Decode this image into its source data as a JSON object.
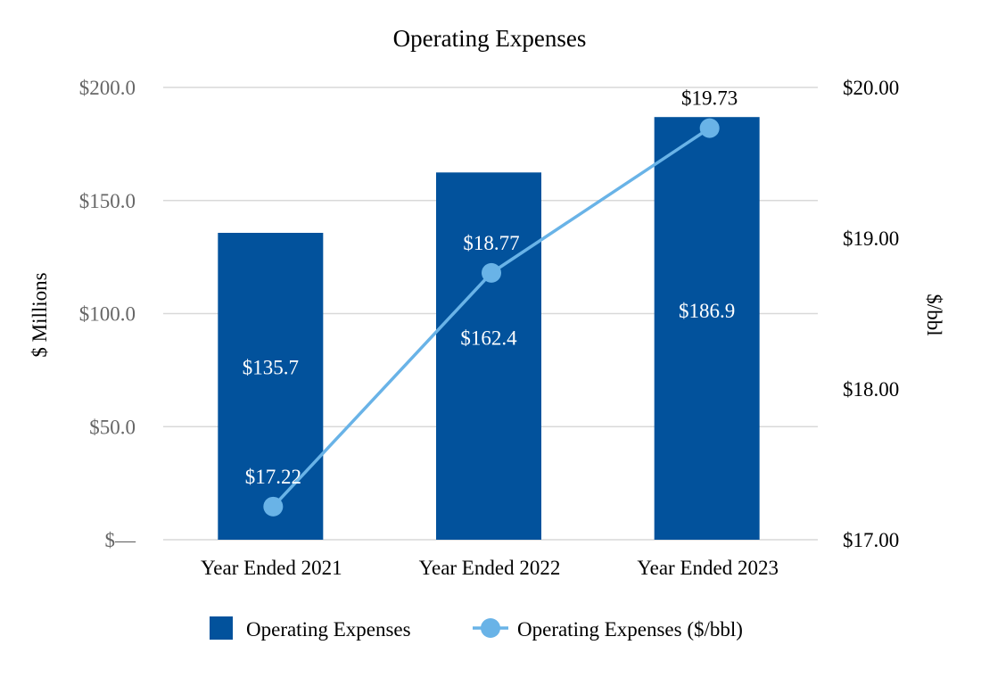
{
  "chart_data": {
    "type": "bar",
    "title": "Operating Expenses",
    "categories": [
      "Year Ended 2021",
      "Year Ended 2022",
      "Year Ended 2023"
    ],
    "series": [
      {
        "name": "Operating Expenses",
        "type": "bar",
        "axis": "left",
        "values": [
          135.7,
          162.4,
          186.9
        ],
        "labels": [
          "$135.7",
          "$162.4",
          "$186.9"
        ],
        "color": "#02529C"
      },
      {
        "name": "Operating Expenses ($/bbl)",
        "type": "line",
        "axis": "right",
        "values": [
          17.22,
          18.77,
          19.73
        ],
        "labels": [
          "$17.22",
          "$18.77",
          "$19.73"
        ],
        "color": "#69B3E7"
      }
    ],
    "ylabel": "$ Millions",
    "y2label": "$/bbl",
    "ylim": [
      0,
      200
    ],
    "y2lim": [
      17,
      20
    ],
    "yticks": [
      "$—",
      "$50.0",
      "$100.0",
      "$150.0",
      "$200.0"
    ],
    "y2ticks": [
      "$17.00",
      "$18.00",
      "$19.00",
      "$20.00"
    ],
    "grid": true,
    "legend": "bottom",
    "colors": {
      "gridline": "#D9D9D9",
      "label_dark": "#000000",
      "label_light": "#ffffff"
    }
  }
}
